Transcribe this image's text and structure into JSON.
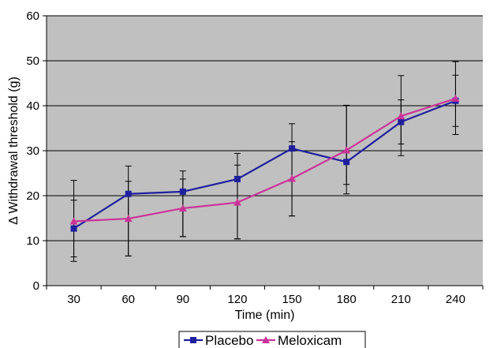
{
  "chart_data": {
    "type": "line",
    "xlabel": "Time (min)",
    "ylabel": "Δ Withdrawal threshold (g)",
    "categories": [
      "30",
      "60",
      "90",
      "120",
      "150",
      "180",
      "210",
      "240"
    ],
    "ylim": [
      0,
      60
    ],
    "yticks": [
      "0",
      "10",
      "20",
      "30",
      "40",
      "50",
      "60"
    ],
    "grid": "horizontal",
    "legend_position": "bottom",
    "plot_background": "#c0c0c0",
    "series": [
      {
        "name": "Placebo",
        "color": "#1f1f9e",
        "marker": "square",
        "values": [
          12.7,
          20.4,
          20.9,
          23.7,
          30.5,
          27.5,
          36.4,
          41.1
        ],
        "error_low": [
          6.4,
          6.6,
          10.9,
          10.4,
          15.5,
          20.4,
          28.9,
          33.6
        ],
        "error_high": [
          19.0,
          26.6,
          25.5,
          29.4,
          36.0,
          40.1,
          46.7,
          49.8
        ]
      },
      {
        "name": "Meloxicam",
        "color": "#cc3399",
        "marker": "triangle",
        "values": [
          14.3,
          14.9,
          17.2,
          18.5,
          23.8,
          30.1,
          37.7,
          41.6
        ],
        "error_low": [
          5.4,
          6.6,
          10.9,
          10.4,
          15.5,
          22.5,
          31.5,
          35.4
        ],
        "error_high": [
          23.4,
          23.2,
          23.7,
          26.8,
          32.0,
          40.1,
          41.3,
          46.8
        ]
      }
    ]
  }
}
